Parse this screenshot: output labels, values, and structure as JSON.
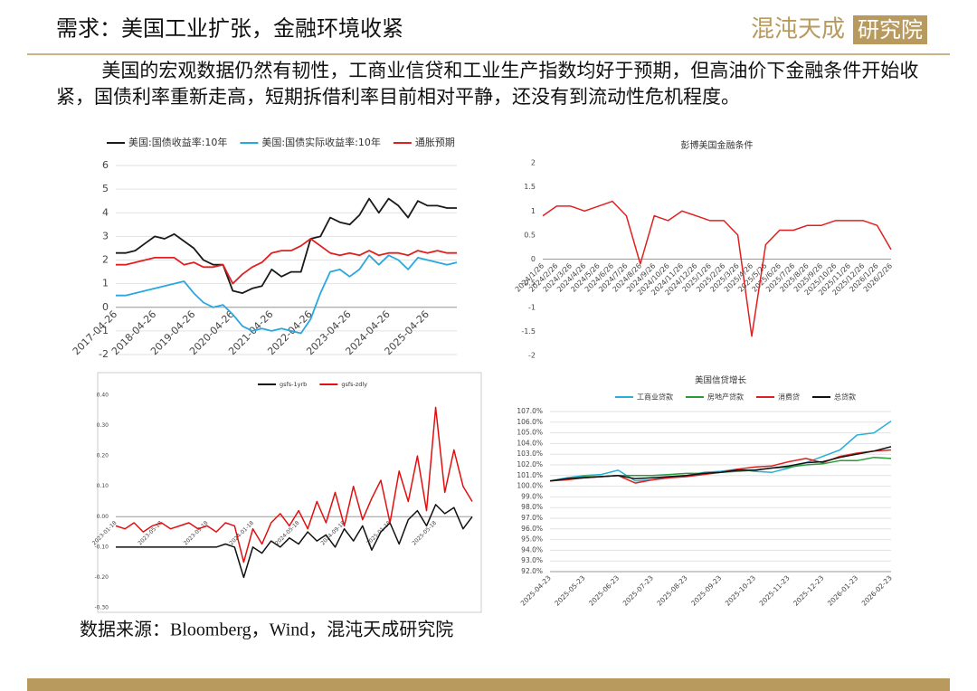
{
  "header": {
    "title": "需求：美国工业扩张，金融环境收紧",
    "logo_left": "混沌天成",
    "logo_right": "研究院"
  },
  "body": "美国的宏观数据仍然有韧性，工商业信贷和工业生产指数均好于预期，但高油价下金融条件开始收紧，国债利率重新走高，短期拆借利率目前相对平静，还没有到流动性危机程度。",
  "source": "数据来源：Bloomberg，Wind，混沌天成研究院",
  "chart_data": [
    {
      "type": "line",
      "legend": "top",
      "grid": true,
      "categories": [
        "2017-04-26",
        null,
        null,
        null,
        "2018-04-26",
        null,
        null,
        null,
        "2019-04-26",
        null,
        null,
        null,
        "2020-04-26",
        null,
        null,
        null,
        "2021-04-26",
        null,
        null,
        null,
        "2022-04-26",
        null,
        null,
        null,
        "2023-04-26",
        null,
        null,
        null,
        "2024-04-26",
        null,
        null,
        null,
        "2025-04-26",
        null,
        null,
        null
      ],
      "ylim": [
        -2,
        6
      ],
      "yticks": [
        -2,
        -1,
        0,
        1,
        2,
        3,
        4,
        5,
        6
      ],
      "series": [
        {
          "name": "美国:国债收益率:10年",
          "color": "#1a1a1a",
          "values": [
            2.3,
            2.3,
            2.4,
            2.7,
            3.0,
            2.9,
            3.1,
            2.8,
            2.5,
            2.0,
            1.8,
            1.8,
            0.7,
            0.6,
            0.8,
            0.9,
            1.6,
            1.3,
            1.5,
            1.5,
            2.9,
            3.0,
            3.8,
            3.6,
            3.5,
            3.9,
            4.6,
            4.0,
            4.6,
            4.3,
            3.8,
            4.5,
            4.3,
            4.3,
            4.2,
            4.2
          ]
        },
        {
          "name": "美国:国债实际收益率:10年",
          "color": "#2aa7dd",
          "values": [
            0.5,
            0.5,
            0.6,
            0.7,
            0.8,
            0.9,
            1.0,
            1.1,
            0.6,
            0.2,
            0.0,
            0.1,
            -0.3,
            -0.8,
            -1.0,
            -0.9,
            -1.0,
            -0.9,
            -1.0,
            -1.1,
            -0.5,
            0.6,
            1.5,
            1.6,
            1.3,
            1.6,
            2.2,
            1.8,
            2.2,
            2.0,
            1.6,
            2.1,
            2.0,
            1.9,
            1.8,
            1.9
          ]
        },
        {
          "name": "通胀预期",
          "color": "#e02020",
          "values": [
            1.8,
            1.8,
            1.9,
            2.0,
            2.1,
            2.1,
            2.1,
            1.8,
            1.9,
            1.7,
            1.7,
            1.8,
            1.0,
            1.4,
            1.7,
            1.9,
            2.3,
            2.4,
            2.4,
            2.6,
            2.9,
            2.6,
            2.3,
            2.2,
            2.3,
            2.2,
            2.4,
            2.2,
            2.3,
            2.3,
            2.2,
            2.4,
            2.3,
            2.4,
            2.3,
            2.3
          ]
        }
      ]
    },
    {
      "type": "line",
      "title": "彭博美国金融条件",
      "grid": false,
      "categories": [
        "2024/1/26",
        "2024/2/26",
        "2024/3/26",
        "2024/4/26",
        "2024/5/26",
        "2024/6/26",
        "2024/7/26",
        "2024/8/26",
        "2024/9/26",
        "2024/10/26",
        "2024/11/26",
        "2024/12/26",
        "2025/1/26",
        "2025/2/26",
        "2025/3/26",
        "2025/4/26",
        "2025/5/26",
        "2025/6/26",
        "2025/7/26",
        "2025/8/26",
        "2025/9/26",
        "2025/10/26",
        "2025/11/26",
        "2025/12/26",
        "2026/1/26",
        "2026/2/26"
      ],
      "ylim": [
        -2,
        2
      ],
      "yticks": [
        -2,
        -1.5,
        -1,
        -0.5,
        0,
        0.5,
        1,
        1.5,
        2
      ],
      "series": [
        {
          "name": "彭博美国金融条件",
          "color": "#e02020",
          "values": [
            0.9,
            1.1,
            1.1,
            1.0,
            1.1,
            1.2,
            0.9,
            -0.1,
            0.9,
            0.8,
            1.0,
            0.9,
            0.8,
            0.8,
            0.5,
            -1.6,
            0.3,
            0.6,
            0.6,
            0.7,
            0.7,
            0.8,
            0.8,
            0.8,
            0.7,
            0.2
          ]
        }
      ]
    },
    {
      "type": "line",
      "legend": "top",
      "grid": false,
      "categories": [
        "2023-01-18",
        null,
        null,
        null,
        null,
        "2023-05-18",
        null,
        null,
        null,
        null,
        "2023-09-18",
        null,
        null,
        null,
        null,
        "2024-01-18",
        null,
        null,
        null,
        null,
        "2024-05-18",
        null,
        null,
        null,
        null,
        "2024-09-18",
        null,
        null,
        null,
        null,
        "2025-01-18",
        null,
        null,
        null,
        null,
        "2025-05-18",
        null,
        null,
        null,
        null
      ],
      "ylim": [
        -0.3,
        0.4
      ],
      "yticks": [
        {
          "value": -0.3,
          "label": "-0.30"
        },
        {
          "value": -0.2,
          "label": "-0.20"
        },
        {
          "value": -0.1,
          "label": "-0.10"
        },
        {
          "value": 0,
          "label": "0.00"
        },
        {
          "value": 0.1,
          "label": "0.10"
        },
        {
          "value": 0.2,
          "label": "0.20"
        },
        {
          "value": 0.3,
          "label": "0.30"
        },
        {
          "value": 0.4,
          "label": "0.40"
        }
      ],
      "series": [
        {
          "name": "gsfs-1yrb",
          "color": "#111111",
          "values": [
            -0.1,
            -0.1,
            -0.1,
            -0.1,
            -0.1,
            -0.1,
            -0.1,
            -0.1,
            -0.1,
            -0.1,
            -0.1,
            -0.1,
            -0.09,
            -0.1,
            -0.2,
            -0.1,
            -0.12,
            -0.08,
            -0.1,
            -0.07,
            -0.09,
            -0.05,
            -0.08,
            -0.06,
            -0.1,
            -0.04,
            -0.08,
            -0.03,
            -0.11,
            -0.05,
            -0.02,
            -0.09,
            -0.01,
            0.02,
            -0.03,
            0.04,
            0.01,
            0.03,
            -0.04,
            0
          ]
        },
        {
          "name": "gsfs-zdly",
          "color": "#e01010",
          "values": [
            -0.03,
            -0.04,
            -0.02,
            -0.05,
            -0.03,
            -0.02,
            -0.04,
            -0.03,
            -0.02,
            -0.04,
            -0.03,
            -0.05,
            -0.02,
            -0.03,
            -0.15,
            -0.04,
            -0.09,
            -0.02,
            0.01,
            -0.03,
            0.02,
            -0.04,
            0.05,
            -0.02,
            0.08,
            -0.03,
            0.1,
            -0.01,
            0.06,
            0.12,
            -0.02,
            0.15,
            0.05,
            0.2,
            0.02,
            0.36,
            0.08,
            0.22,
            0.1,
            0.05
          ]
        }
      ]
    },
    {
      "type": "line",
      "title": "美国信贷增长",
      "legend": "top",
      "grid": true,
      "categories": [
        "2025-04-23",
        null,
        "2025-05-23",
        null,
        "2025-06-23",
        null,
        "2025-07-23",
        null,
        "2025-08-23",
        null,
        "2025-09-23",
        null,
        "2025-10-23",
        null,
        "2025-11-23",
        null,
        "2025-12-23",
        null,
        "2026-01-23",
        null,
        "2026-02-23"
      ],
      "ylim": [
        92,
        107
      ],
      "yticks": [
        {
          "value": 92,
          "label": "92.0%"
        },
        {
          "value": 93,
          "label": "93.0%"
        },
        {
          "value": 94,
          "label": "94.0%"
        },
        {
          "value": 95,
          "label": "95.0%"
        },
        {
          "value": 96,
          "label": "96.0%"
        },
        {
          "value": 97,
          "label": "97.0%"
        },
        {
          "value": 98,
          "label": "98.0%"
        },
        {
          "value": 99,
          "label": "99.0%"
        },
        {
          "value": 100,
          "label": "100.0%"
        },
        {
          "value": 101,
          "label": "101.0%"
        },
        {
          "value": 102,
          "label": "102.0%"
        },
        {
          "value": 103,
          "label": "103.0%"
        },
        {
          "value": 104,
          "label": "104.0%"
        },
        {
          "value": 105,
          "label": "105.0%"
        },
        {
          "value": 106,
          "label": "106.0%"
        },
        {
          "value": 107,
          "label": "107.0%"
        }
      ],
      "series": [
        {
          "name": "工商业贷款",
          "color": "#2ab0d8",
          "values": [
            100.5,
            100.8,
            101.0,
            101.1,
            101.5,
            100.5,
            100.6,
            100.9,
            101.0,
            101.3,
            101.4,
            101.6,
            101.4,
            101.3,
            101.7,
            102.2,
            102.8,
            103.4,
            104.8,
            105.0,
            106.1
          ]
        },
        {
          "name": "房地产贷款",
          "color": "#2a9a3a",
          "values": [
            100.5,
            100.7,
            100.9,
            100.9,
            101.0,
            101.0,
            101.0,
            101.1,
            101.2,
            101.2,
            101.3,
            101.4,
            101.5,
            101.7,
            101.8,
            102.0,
            102.1,
            102.4,
            102.4,
            102.7,
            102.6
          ]
        },
        {
          "name": "消费贷",
          "color": "#e02020",
          "values": [
            100.5,
            100.6,
            100.8,
            100.9,
            101.0,
            100.3,
            100.6,
            100.8,
            100.9,
            101.1,
            101.3,
            101.6,
            101.8,
            101.9,
            102.3,
            102.6,
            102.2,
            102.8,
            103.1,
            103.3,
            103.4
          ]
        },
        {
          "name": "总贷款",
          "color": "#111111",
          "values": [
            100.5,
            100.7,
            100.8,
            100.9,
            101.0,
            100.7,
            100.8,
            100.9,
            101.0,
            101.2,
            101.3,
            101.5,
            101.5,
            101.7,
            101.9,
            102.2,
            102.3,
            102.7,
            103.0,
            103.3,
            103.7
          ]
        }
      ]
    }
  ]
}
